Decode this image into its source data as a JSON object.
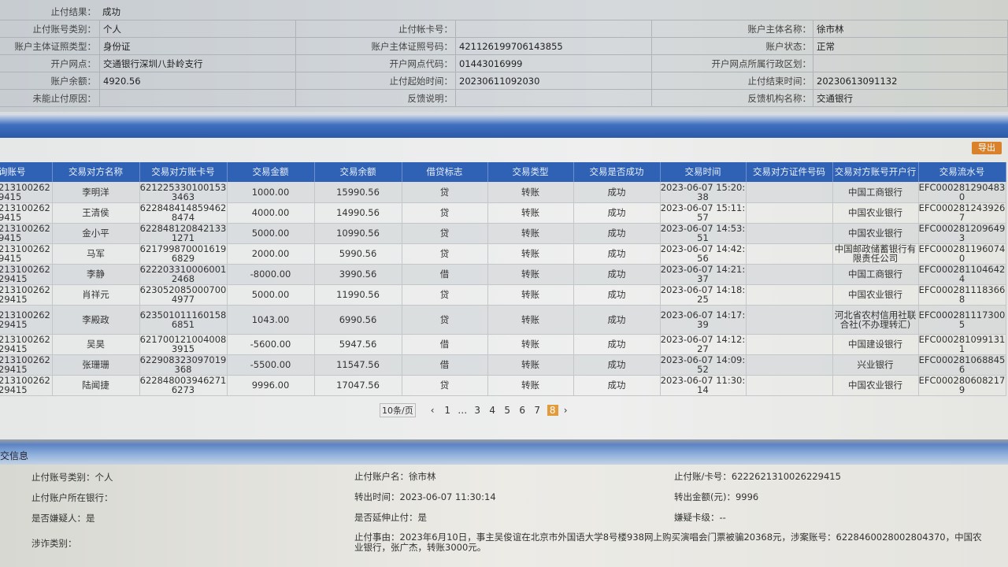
{
  "top_form": {
    "rows": [
      [
        {
          "label": "止付结果：",
          "value": "成功"
        }
      ],
      [
        {
          "label": "止付账号类别：",
          "value": "个人"
        },
        {
          "label": "止付帐卡号：",
          "value": ""
        },
        {
          "label": "账户主体名称：",
          "value": "徐市林"
        }
      ],
      [
        {
          "label": "账户主体证照类型：",
          "value": "身份证"
        },
        {
          "label": "账户主体证照号码：",
          "value": "421126199706143855"
        },
        {
          "label": "账户状态：",
          "value": "正常"
        }
      ],
      [
        {
          "label": "开户网点：",
          "value": "交通银行深圳八卦岭支行"
        },
        {
          "label": "开户网点代码：",
          "value": "01443016999"
        },
        {
          "label": "开户网点所属行政区划：",
          "value": ""
        }
      ],
      [
        {
          "label": "账户余额：",
          "value": "4920.56"
        },
        {
          "label": "止付起始时间：",
          "value": "20230611092030"
        },
        {
          "label": "止付结束时间：",
          "value": "20230613091132"
        }
      ],
      [
        {
          "label": "未能止付原因：",
          "value": ""
        },
        {
          "label": "反馈说明：",
          "value": ""
        },
        {
          "label": "反馈机构名称：",
          "value": "交通银行"
        }
      ]
    ]
  },
  "export_label": "导出",
  "table": {
    "headers": [
      "询账号",
      "交易对方名称",
      "交易对方账卡号",
      "交易金额",
      "交易余额",
      "借贷标志",
      "交易类型",
      "交易是否成功",
      "交易时间",
      "交易对方证件号码",
      "交易对方账号开户行",
      "交易流水号"
    ],
    "rows": [
      [
        "213100262 9415",
        "李明洋",
        "6212253301001533463",
        "1000.00",
        "15990.56",
        "贷",
        "转账",
        "成功",
        "2023-06-07 15:20:38",
        "",
        "中国工商银行",
        "EFC0002812904830"
      ],
      [
        "213100262 9415",
        "王清侯",
        "6228484148594628474",
        "4000.00",
        "14990.56",
        "贷",
        "转账",
        "成功",
        "2023-06-07 15:11:57",
        "",
        "中国农业银行",
        "EFC0002812439267"
      ],
      [
        "213100262 9415",
        "金小平",
        "6228481208421331271",
        "5000.00",
        "10990.56",
        "贷",
        "转账",
        "成功",
        "2023-06-07 14:53:51",
        "",
        "中国农业银行",
        "EFC0002812096493"
      ],
      [
        "213100262 9415",
        "马军",
        "6217998700016196829",
        "2000.00",
        "5990.56",
        "贷",
        "转账",
        "成功",
        "2023-06-07 14:42:56",
        "",
        "中国邮政储蓄银行有限责任公司",
        "EFC0002811960740"
      ],
      [
        "213100262 29415",
        "李静",
        "6222033100060012468",
        "-8000.00",
        "3990.56",
        "借",
        "转账",
        "成功",
        "2023-06-07 14:21:37",
        "",
        "中国工商银行",
        "EFC0002811046424"
      ],
      [
        "213100262 29415",
        "肖祥元",
        "6230520850007004977",
        "5000.00",
        "11990.56",
        "贷",
        "转账",
        "成功",
        "2023-06-07 14:18:25",
        "",
        "中国农业银行",
        "EFC0002811183668"
      ],
      [
        "213100262 29415",
        "李殿政",
        "6235010111601586851",
        "1043.00",
        "6990.56",
        "贷",
        "转账",
        "成功",
        "2023-06-07 14:17:39",
        "",
        "河北省农村信用社联合社(不办理转汇)",
        "EFC0002811173005"
      ],
      [
        "213100262 29415",
        "吴昊",
        "6217001210040083915",
        "-5600.00",
        "5947.56",
        "借",
        "转账",
        "成功",
        "2023-06-07 14:12:27",
        "",
        "中国建设银行",
        "EFC0002810991311"
      ],
      [
        "213100262 29415",
        "张珊珊",
        "622908323097019368",
        "-5500.00",
        "11547.56",
        "借",
        "转账",
        "成功",
        "2023-06-07 14:09:52",
        "",
        "兴业银行",
        "EFC0002810688456"
      ],
      [
        "213100262 29415",
        "陆闻捷",
        "6228480039462716273",
        "9996.00",
        "17047.56",
        "贷",
        "转账",
        "成功",
        "2023-06-07 11:30:14",
        "",
        "中国农业银行",
        "EFC0002806082179"
      ]
    ]
  },
  "pager": {
    "page_size": "10条/页",
    "prev": "‹",
    "pages": [
      "1",
      "…",
      "3",
      "4",
      "5",
      "6",
      "7",
      "8"
    ],
    "current": "8",
    "next": "›"
  },
  "section_title": "交信息",
  "info": {
    "r1": [
      "止付账号类别：个人",
      "止付账户名：徐市林",
      "止付账/卡号：6222621310026229415"
    ],
    "r2": [
      "止付账户所在银行：",
      "转出时间：2023-06-07 11:30:14",
      "转出金额(元)：9996"
    ],
    "r3": [
      "是否嫌疑人：是",
      "是否延伸止付：是",
      "嫌疑卡级：--"
    ],
    "fraud_label": "涉诈类别：",
    "reason": "止付事由：2023年6月10日，事主吴俊谊在北京市外国语大学8号楼938网上购买演唱会门票被骗20368元，涉案账号：6228460028002804370，中国农业银行，张广杰，转账3000元。"
  },
  "colors": {
    "header_blue": "#2f62b5",
    "accent_orange": "#e39a38"
  }
}
